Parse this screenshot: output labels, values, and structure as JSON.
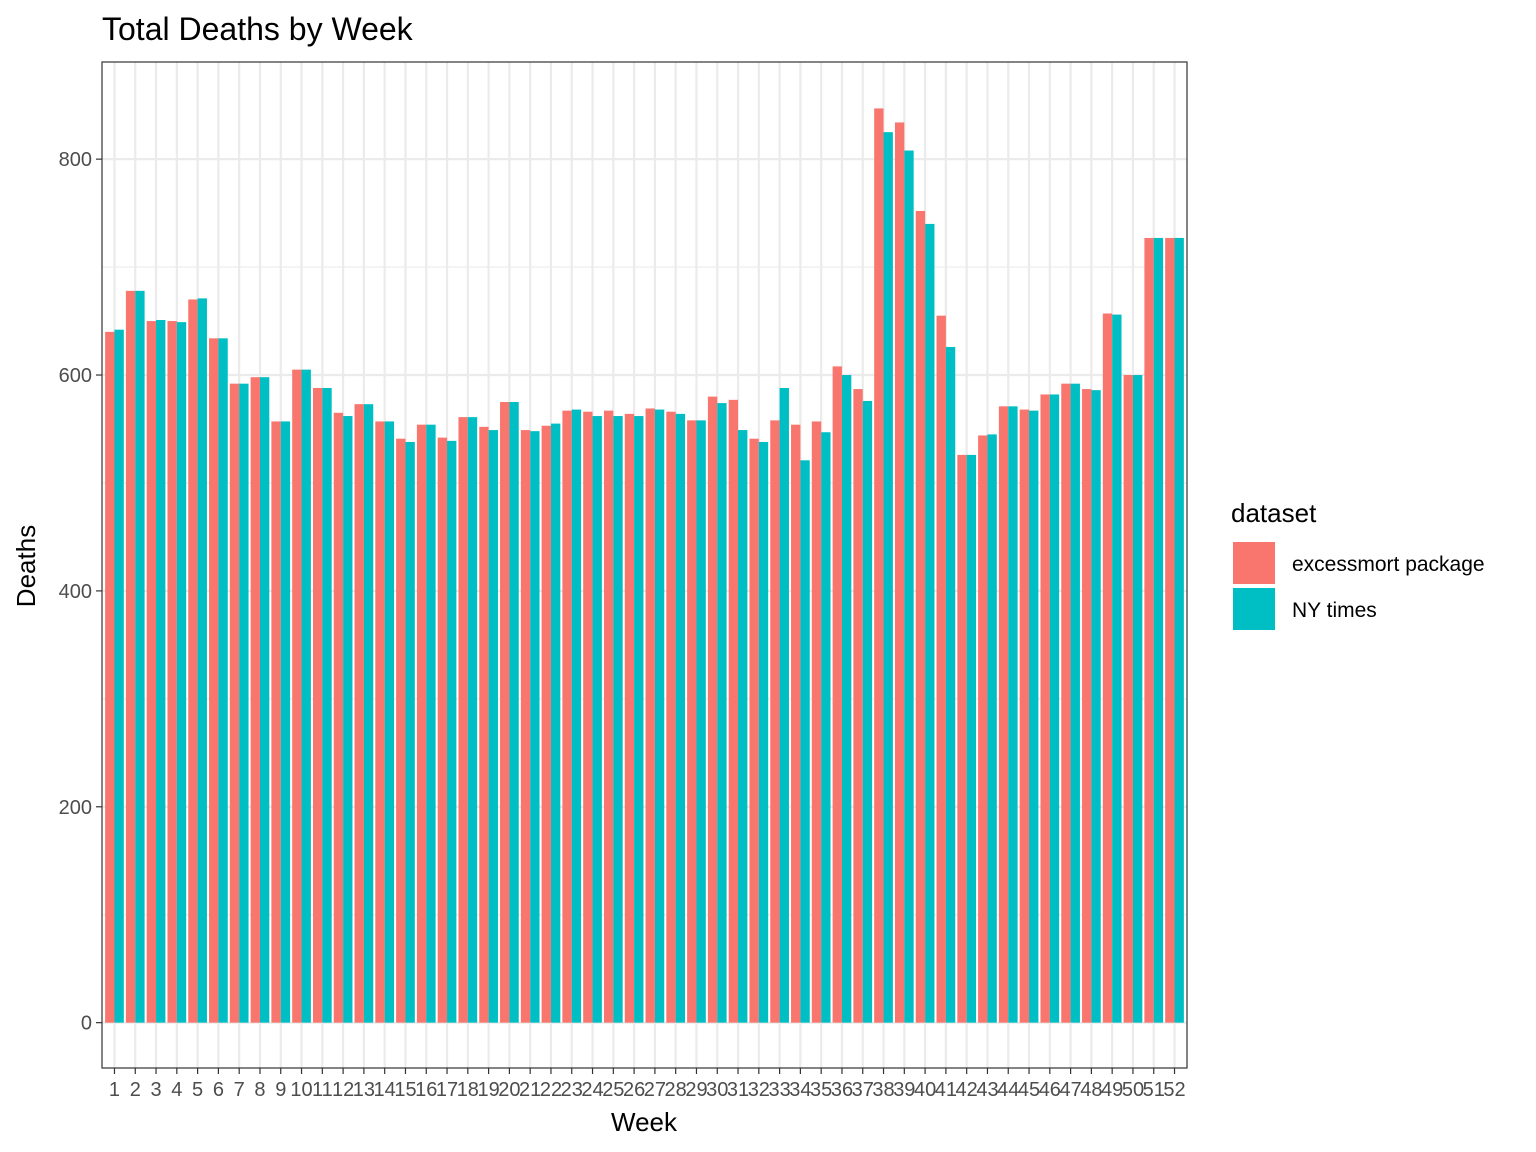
{
  "chart_data": {
    "type": "bar",
    "title": "Total Deaths by Week",
    "xlabel": "Week",
    "ylabel": "Deaths",
    "ylim": [
      -42,
      890
    ],
    "y_ticks": [
      0,
      200,
      400,
      600,
      800
    ],
    "y_tick_labels": [
      "0",
      "200",
      "400",
      "600",
      "800"
    ],
    "grid": true,
    "legend": {
      "title": "dataset",
      "placement": "right"
    },
    "categories": [
      "1",
      "2",
      "3",
      "4",
      "5",
      "6",
      "7",
      "8",
      "9",
      "10",
      "11",
      "12",
      "13",
      "14",
      "15",
      "16",
      "17",
      "18",
      "19",
      "20",
      "21",
      "22",
      "23",
      "24",
      "25",
      "26",
      "27",
      "28",
      "29",
      "30",
      "31",
      "32",
      "33",
      "34",
      "35",
      "36",
      "37",
      "38",
      "39",
      "40",
      "41",
      "42",
      "43",
      "44",
      "45",
      "46",
      "47",
      "48",
      "49",
      "50",
      "51",
      "52"
    ],
    "series": [
      {
        "name": "excessmort package",
        "color": "#F8766D",
        "values": [
          640,
          678,
          650,
          650,
          670,
          634,
          592,
          598,
          557,
          605,
          588,
          565,
          573,
          557,
          541,
          554,
          542,
          561,
          552,
          575,
          549,
          553,
          567,
          566,
          567,
          564,
          569,
          566,
          558,
          580,
          577,
          541,
          558,
          554,
          557,
          608,
          587,
          847,
          834,
          752,
          655,
          526,
          544,
          571,
          568,
          582,
          592,
          587,
          657,
          600,
          727,
          727
        ]
      },
      {
        "name": "NY times",
        "color": "#00BFC4",
        "values": [
          642,
          678,
          651,
          649,
          671,
          634,
          592,
          598,
          557,
          605,
          588,
          562,
          573,
          557,
          538,
          554,
          539,
          561,
          549,
          575,
          548,
          555,
          568,
          562,
          562,
          562,
          568,
          564,
          558,
          574,
          549,
          538,
          588,
          521,
          547,
          600,
          576,
          825,
          808,
          740,
          626,
          526,
          545,
          571,
          567,
          582,
          592,
          586,
          656,
          600,
          727,
          727
        ]
      }
    ]
  }
}
